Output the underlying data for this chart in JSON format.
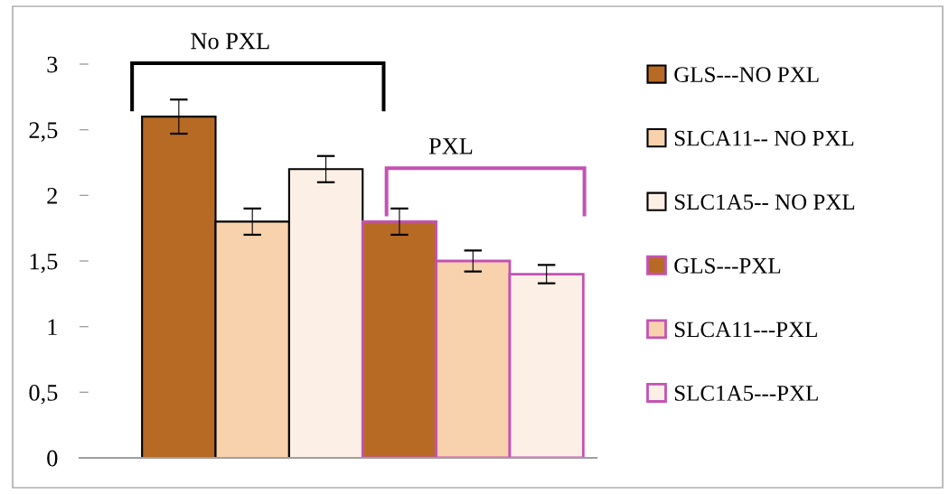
{
  "chart_data": {
    "type": "bar",
    "categories": [
      null
    ],
    "series": [
      {
        "name": "GLS---NO PXL",
        "color": "#b76a24",
        "values": [
          2.6
        ],
        "errors": [
          0.13
        ]
      },
      {
        "name": "SLCA11-- NO PXL",
        "color": "#f8d2ac",
        "values": [
          1.8
        ],
        "errors": [
          0.1
        ]
      },
      {
        "name": "SLC1A5-- NO PXL",
        "color": "#fcefe5",
        "values": [
          2.2
        ],
        "errors": [
          0.1
        ]
      },
      {
        "name": "GLS---PXL",
        "color": "#b76a24",
        "values": [
          1.8
        ],
        "errors": [
          0.1
        ]
      },
      {
        "name": "SLCA11---PXL",
        "color": "#f8d2ac",
        "values": [
          1.5
        ],
        "errors": [
          0.08
        ]
      },
      {
        "name": "SLC1A5---PXL",
        "color": "#fcefe5",
        "values": [
          1.4
        ],
        "errors": [
          0.07
        ]
      }
    ],
    "ylim": [
      0,
      3
    ],
    "yticks": [
      0,
      {
        "value": 0.5,
        "label": "0,5"
      },
      1,
      {
        "value": 1.5,
        "label": "1,5"
      },
      2,
      {
        "value": 2.5,
        "label": "2,5"
      },
      3
    ],
    "legend": "right",
    "annotations": [
      "No PXL",
      "PXL"
    ]
  }
}
